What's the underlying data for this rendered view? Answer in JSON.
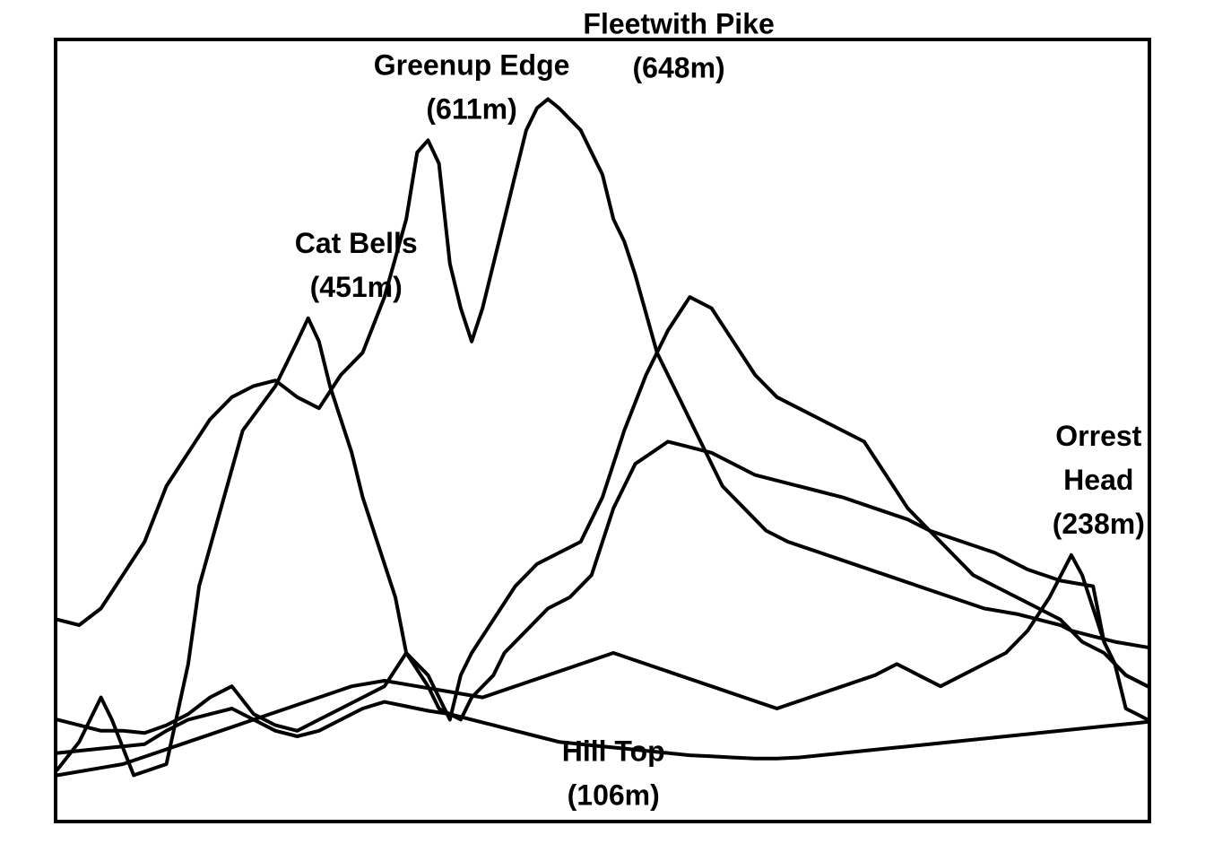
{
  "chart_data": {
    "type": "line",
    "title": "",
    "xlabel": "",
    "ylabel": "",
    "grid": false,
    "legend": "none",
    "ylim": [
      0,
      700
    ],
    "xlim": [
      0,
      100
    ],
    "line_color": "#000000",
    "series": [
      {
        "x": [
          0,
          2,
          4,
          5,
          7,
          10,
          12,
          13,
          15,
          17,
          20,
          22,
          23,
          24,
          25,
          27,
          28,
          30,
          31,
          32,
          34,
          35,
          37,
          38,
          40,
          41,
          42,
          43,
          45,
          47,
          49,
          51,
          53,
          56,
          60,
          64,
          68,
          72,
          75,
          78,
          80,
          83,
          86,
          89,
          92,
          95,
          96,
          97,
          98,
          100
        ],
        "y": [
          45,
          70,
          110,
          90,
          40,
          50,
          140,
          210,
          280,
          350,
          390,
          430,
          451,
          430,
          390,
          330,
          290,
          230,
          200,
          150,
          120,
          100,
          90,
          110,
          130,
          150,
          160,
          170,
          190,
          200,
          220,
          280,
          320,
          340,
          330,
          310,
          300,
          290,
          280,
          270,
          260,
          250,
          240,
          225,
          215,
          210,
          160,
          140,
          100,
          90
        ]
      },
      {
        "x": [
          0,
          2,
          4,
          6,
          8,
          10,
          12,
          14,
          16,
          18,
          20,
          22,
          24,
          26,
          28,
          30,
          32,
          33,
          34,
          35,
          36,
          37,
          38,
          39,
          40,
          41,
          42,
          43,
          44,
          45,
          46,
          47,
          48,
          49,
          50,
          51,
          52,
          53,
          55,
          57,
          59,
          61,
          63,
          65,
          67,
          70,
          73,
          76,
          79,
          82,
          85,
          88,
          90,
          92,
          93,
          95,
          97,
          100
        ],
        "y": [
          180,
          175,
          190,
          220,
          250,
          300,
          330,
          360,
          380,
          390,
          395,
          380,
          370,
          400,
          420,
          470,
          540,
          600,
          611,
          590,
          500,
          460,
          430,
          460,
          500,
          540,
          580,
          620,
          640,
          648,
          640,
          630,
          620,
          600,
          580,
          540,
          520,
          490,
          420,
          380,
          340,
          300,
          280,
          260,
          250,
          240,
          230,
          220,
          210,
          200,
          190,
          185,
          180,
          175,
          170,
          165,
          160,
          155
        ]
      },
      {
        "x": [
          0,
          2,
          4,
          6,
          8,
          10,
          12,
          14,
          16,
          18,
          20,
          22,
          24,
          26,
          28,
          30,
          32,
          34,
          36,
          37,
          38,
          40,
          42,
          44,
          46,
          48,
          50,
          52,
          54,
          56,
          58,
          60,
          62,
          64,
          66,
          68,
          70,
          72,
          74,
          76,
          78,
          80,
          82,
          84,
          86,
          88,
          90,
          92,
          94,
          96,
          98,
          100
        ],
        "y": [
          90,
          85,
          80,
          80,
          78,
          85,
          95,
          110,
          120,
          95,
          85,
          80,
          90,
          100,
          110,
          120,
          150,
          130,
          90,
          130,
          150,
          180,
          210,
          230,
          240,
          250,
          290,
          350,
          400,
          440,
          470,
          460,
          430,
          400,
          380,
          370,
          360,
          350,
          340,
          310,
          280,
          260,
          240,
          220,
          210,
          200,
          190,
          180,
          160,
          150,
          130,
          120
        ]
      },
      {
        "x": [
          0,
          2,
          4,
          6,
          8,
          10,
          12,
          14,
          16,
          18,
          20,
          22,
          24,
          26,
          28,
          30,
          32,
          34,
          36,
          38,
          40,
          42,
          44,
          46,
          48,
          50,
          52,
          54,
          56,
          58,
          60,
          62,
          64,
          66,
          68,
          70,
          72,
          74,
          76,
          78,
          80,
          82,
          84,
          86,
          88,
          90,
          92,
          94,
          96,
          98,
          100
        ],
        "y": [
          60,
          62,
          64,
          66,
          68,
          80,
          90,
          95,
          100,
          90,
          80,
          75,
          80,
          90,
          100,
          106,
          102,
          98,
          95,
          90,
          85,
          80,
          75,
          70,
          68,
          66,
          64,
          62,
          60,
          58,
          57,
          56,
          55,
          55,
          56,
          58,
          60,
          62,
          64,
          66,
          68,
          70,
          72,
          74,
          76,
          78,
          80,
          82,
          84,
          86,
          88
        ]
      },
      {
        "x": [
          0,
          3,
          6,
          9,
          12,
          15,
          18,
          21,
          24,
          27,
          30,
          33,
          36,
          39,
          42,
          45,
          48,
          51,
          54,
          57,
          60,
          63,
          66,
          69,
          72,
          75,
          77,
          79,
          81,
          83,
          85,
          87,
          89,
          91,
          93,
          94,
          95,
          96,
          97,
          98,
          100
        ],
        "y": [
          40,
          45,
          50,
          60,
          70,
          80,
          90,
          100,
          110,
          120,
          125,
          120,
          115,
          110,
          120,
          130,
          140,
          150,
          140,
          130,
          120,
          110,
          100,
          110,
          120,
          130,
          140,
          130,
          120,
          130,
          140,
          150,
          170,
          200,
          238,
          220,
          190,
          160,
          140,
          130,
          120
        ]
      }
    ],
    "annotations": [
      {
        "lines": [
          "Cat Bells",
          "(451m)"
        ],
        "x": 27.4,
        "y": 451
      },
      {
        "lines": [
          "Greenup Edge",
          "(611m)"
        ],
        "x": 38.0,
        "y": 611
      },
      {
        "lines": [
          "Fleetwith Pike",
          "(648m)"
        ],
        "x": 57.0,
        "y": 648
      },
      {
        "lines": [
          "Orrest",
          "Head",
          "(238m)"
        ],
        "x": 95.5,
        "y": 238
      },
      {
        "lines": [
          "Hill Top",
          "(106m)"
        ],
        "x": 51.0,
        "y": 106
      }
    ]
  }
}
